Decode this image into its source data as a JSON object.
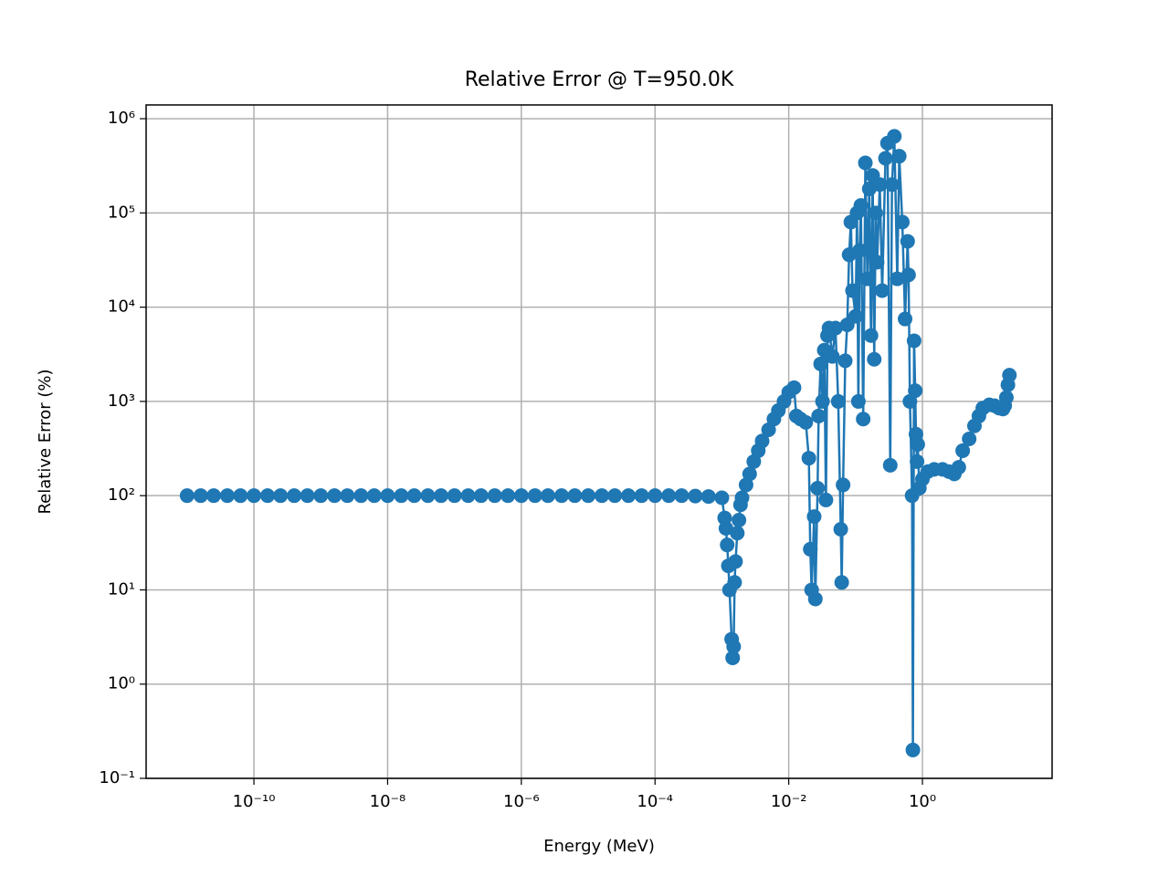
{
  "chart_data": {
    "type": "line",
    "title": "Relative Error @ T=950.0K",
    "x_label": "Energy (MeV)",
    "y_label": "Relative Error (%)",
    "x_scale": "log",
    "y_scale": "log",
    "grid": true,
    "color": "#1f77b4",
    "marker": "circle",
    "xlim": [
      2.44e-12,
      87
    ],
    "ylim": [
      0.1,
      1400000
    ],
    "xticks": [
      {
        "value": 1e-10,
        "label": "10⁻¹⁰"
      },
      {
        "value": 1e-08,
        "label": "10⁻⁸"
      },
      {
        "value": 1e-06,
        "label": "10⁻⁶"
      },
      {
        "value": 0.0001,
        "label": "10⁻⁴"
      },
      {
        "value": 0.01,
        "label": "10⁻²"
      },
      {
        "value": 1,
        "label": "10⁰"
      }
    ],
    "yticks": [
      {
        "value": 0.1,
        "label": "10⁻¹"
      },
      {
        "value": 1,
        "label": "10⁰"
      },
      {
        "value": 10,
        "label": "10¹"
      },
      {
        "value": 100,
        "label": "10²"
      },
      {
        "value": 1000,
        "label": "10³"
      },
      {
        "value": 10000,
        "label": "10⁴"
      },
      {
        "value": 100000,
        "label": "10⁵"
      },
      {
        "value": 1000000,
        "label": "10⁶"
      }
    ],
    "x": [
      1e-11,
      1.6e-11,
      2.5e-11,
      4e-11,
      6.3e-11,
      1e-10,
      1.6e-10,
      2.5e-10,
      4e-10,
      6.3e-10,
      1e-09,
      1.6e-09,
      2.5e-09,
      4e-09,
      6.3e-09,
      1e-08,
      1.6e-08,
      2.5e-08,
      4e-08,
      6.3e-08,
      1e-07,
      1.6e-07,
      2.5e-07,
      4e-07,
      6.3e-07,
      1e-06,
      1.6e-06,
      2.5e-06,
      4e-06,
      6.3e-06,
      1e-05,
      1.6e-05,
      2.5e-05,
      4e-05,
      6.3e-05,
      0.0001,
      0.00016,
      0.00025,
      0.0004,
      0.00063,
      0.001,
      0.0011,
      0.00115,
      0.0012,
      0.00125,
      0.0013,
      0.0014,
      0.00145,
      0.0015,
      0.00155,
      0.0016,
      0.0017,
      0.0018,
      0.0019,
      0.002,
      0.0023,
      0.0026,
      0.003,
      0.0035,
      0.004,
      0.005,
      0.006,
      0.007,
      0.0085,
      0.01,
      0.012,
      0.013,
      0.015,
      0.018,
      0.02,
      0.021,
      0.022,
      0.024,
      0.025,
      0.027,
      0.028,
      0.03,
      0.032,
      0.034,
      0.036,
      0.038,
      0.04,
      0.045,
      0.05,
      0.055,
      0.06,
      0.062,
      0.065,
      0.07,
      0.075,
      0.08,
      0.085,
      0.09,
      0.1,
      0.105,
      0.11,
      0.115,
      0.12,
      0.13,
      0.14,
      0.15,
      0.16,
      0.17,
      0.18,
      0.19,
      0.2,
      0.21,
      0.23,
      0.25,
      0.28,
      0.3,
      0.33,
      0.35,
      0.38,
      0.42,
      0.45,
      0.5,
      0.55,
      0.6,
      0.62,
      0.65,
      0.7,
      0.72,
      0.75,
      0.78,
      0.8,
      0.83,
      0.85,
      0.9,
      1,
      1.2,
      1.5,
      2,
      2.5,
      3,
      3.5,
      4,
      5,
      6,
      7,
      8,
      10,
      12,
      14,
      16,
      17,
      18,
      19,
      20
    ],
    "values": [
      100,
      100,
      100,
      100,
      100,
      100,
      100,
      100,
      100,
      100,
      100,
      100,
      100,
      100,
      100,
      100,
      100,
      100,
      100,
      100,
      100,
      100,
      100,
      100,
      100,
      100,
      100,
      100,
      100,
      100,
      100,
      100,
      100,
      100,
      100,
      100,
      100,
      100,
      99,
      98,
      95,
      58,
      45,
      30,
      18,
      10,
      3,
      1.9,
      2.5,
      12,
      20,
      40,
      55,
      80,
      95,
      130,
      170,
      230,
      300,
      380,
      500,
      650,
      800,
      1000,
      1250,
      1400,
      700,
      650,
      600,
      250,
      27,
      10,
      60,
      8,
      120,
      700,
      2500,
      1000,
      3500,
      90,
      5000,
      6000,
      3000,
      6000,
      1000,
      44,
      12,
      130,
      2700,
      6500,
      36000,
      80000,
      15000,
      8000,
      100000,
      1000,
      40000,
      120000,
      650,
      340000,
      20000,
      180000,
      5000,
      250000,
      2800,
      100000,
      30000,
      200000,
      15000,
      380000,
      550000,
      210,
      200000,
      650000,
      20000,
      400000,
      80000,
      7500,
      50000,
      22000,
      1000,
      100,
      0.2,
      4400,
      1300,
      450,
      230,
      350,
      120,
      150,
      180,
      190,
      190,
      180,
      170,
      200,
      300,
      400,
      550,
      700,
      850,
      920,
      900,
      850,
      830,
      900,
      1100,
      1500,
      1900
    ]
  }
}
